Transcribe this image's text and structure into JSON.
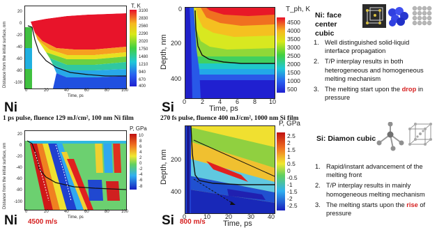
{
  "panels": {
    "ni_temperature": {
      "ylabel": "Distance from the initial surface, nm",
      "xlabel": "Time, ps",
      "xticks": [
        "0",
        "20",
        "40",
        "60",
        "80",
        "100"
      ],
      "yticks": [
        "20",
        "0",
        "-20",
        "-40",
        "-60",
        "-80",
        "-100"
      ],
      "colorbar_title": "T, K",
      "colorbar_ticks": [
        "3100",
        "2830",
        "2560",
        "2290",
        "2020",
        "1750",
        "1480",
        "1210",
        "940",
        "670",
        "400"
      ],
      "element_label": "Ni",
      "caption": "1 ps pulse, fluence 129 mJ/cm², 100 nm Ni film"
    },
    "si_temperature": {
      "ylabel": "Depth, nm",
      "xlabel": "Time, ps",
      "xticks": [
        "0",
        "2",
        "4",
        "6",
        "8",
        "10"
      ],
      "yticks": [
        "0",
        "200",
        "400"
      ],
      "colorbar_title": "T_ph, K",
      "colorbar_ticks": [
        "4500",
        "4000",
        "3500",
        "3000",
        "2500",
        "2000",
        "1500",
        "1000",
        "500"
      ],
      "element_label": "Si",
      "caption": "270 fs pulse, fluence 400 mJ/cm², 1000 nm Si film"
    },
    "ni_pressure": {
      "ylabel": "Distance from the initial surface, nm",
      "xlabel": "Time, ps",
      "xticks": [
        "0",
        "20",
        "40",
        "60",
        "80",
        "100"
      ],
      "yticks": [
        "20",
        "0",
        "-20",
        "-40",
        "-60",
        "-80",
        "-100"
      ],
      "colorbar_title": "P, GPa",
      "colorbar_ticks": [
        "10",
        "8",
        "6",
        "4",
        "2",
        "0",
        "-2",
        "-4",
        "-6",
        "-8"
      ],
      "element_label": "Ni",
      "speed": "4500 m/s"
    },
    "si_pressure": {
      "ylabel": "Depth, nm",
      "xlabel": "Time, ps",
      "xticks": [
        "0",
        "10",
        "20",
        "30",
        "40"
      ],
      "yticks": [
        "200",
        "400"
      ],
      "colorbar_title": "P, GPa",
      "colorbar_ticks": [
        "2.5",
        "2",
        "1.5",
        "1",
        "0.5",
        "0",
        "-0.5",
        "-1",
        "-1.5",
        "-2",
        "-2.5"
      ],
      "element_label": "Si",
      "speed": "800 m/s"
    }
  },
  "ni_info": {
    "title": "Ni: face center cubic",
    "items": [
      {
        "num": "1.",
        "text": "Well distinguished solid-liquid interface propagation"
      },
      {
        "num": "2.",
        "text": "T/P interplay results in both heterogeneous and homogeneous melting mechanism"
      },
      {
        "num": "3.",
        "pre": "The melting start upon the ",
        "emph": "drop",
        "post": " in pressure"
      }
    ]
  },
  "si_info": {
    "title": "Si: Diamon cubic",
    "items": [
      {
        "num": "1.",
        "text": "Rapid/instant advancement of the melting front"
      },
      {
        "num": "2.",
        "text": "T/P interplay results in mainly homogeneous melting mechanism"
      },
      {
        "num": "3.",
        "pre": "The melting starts upon the ",
        "emph": "rise",
        "post": " of pressure"
      }
    ]
  },
  "colors": {
    "accent_red": "#d62020"
  }
}
